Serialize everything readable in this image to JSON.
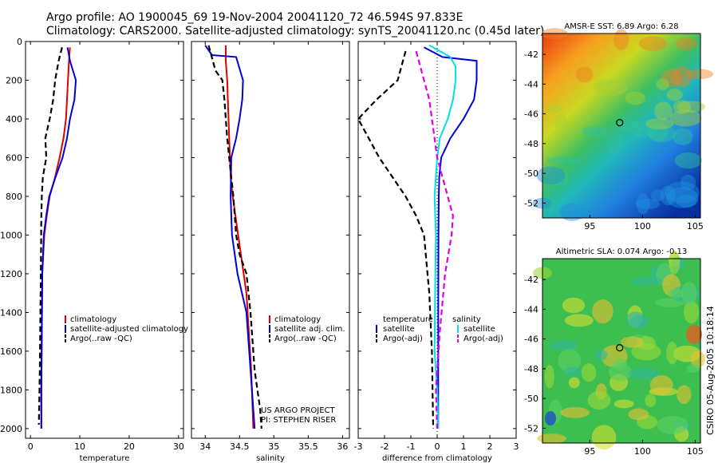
{
  "header": {
    "line1": "Argo profile: AO 1900045_69 19-Nov-2004 20041120_72 46.594S 97.833E",
    "line2": "Climatology: CARS2000. Satellite-adjusted climatology: synTS_20041120.nc (0.45d later)"
  },
  "credit": "CSIRO 05-Aug-2005 10:18:14",
  "colors": {
    "red": "#e00000",
    "blue": "#0000d8",
    "black": "#000000",
    "cyan": "#00e0e0",
    "magenta": "#e000e0"
  },
  "chart_data": [
    {
      "type": "line",
      "id": "temperature",
      "xlabel": "temperature",
      "xlim": [
        -1,
        31
      ],
      "ylim": [
        0,
        2050
      ],
      "y_reversed": true,
      "xticks": [
        0,
        10,
        20,
        30
      ],
      "yticks": [
        0,
        200,
        400,
        600,
        800,
        1000,
        1200,
        1400,
        1600,
        1800,
        2000
      ],
      "series": [
        {
          "name": "climatology",
          "color": "red",
          "style": "solid",
          "x": [
            8.0,
            7.8,
            7.6,
            7.4,
            7.2,
            6.7,
            5.9,
            5.0,
            3.9,
            3.3,
            2.8,
            2.4,
            2.3,
            2.2,
            2.2
          ],
          "y": [
            30,
            100,
            200,
            300,
            400,
            500,
            600,
            700,
            800,
            900,
            1000,
            1200,
            1500,
            1800,
            2000
          ]
        },
        {
          "name": "satellite-adjusted climatology",
          "color": "blue",
          "style": "solid",
          "x": [
            7.5,
            8.0,
            9.2,
            8.9,
            8.0,
            7.4,
            6.5,
            5.1,
            3.8,
            3.2,
            2.7,
            2.4,
            2.3,
            2.2,
            2.2
          ],
          "y": [
            30,
            100,
            200,
            300,
            400,
            500,
            600,
            700,
            800,
            900,
            1000,
            1200,
            1500,
            1800,
            2000
          ]
        },
        {
          "name": "Argo(..raw -QC)",
          "color": "black",
          "style": "dashed",
          "x": [
            6.4,
            5.7,
            5.0,
            4.6,
            3.9,
            3.0,
            3.2,
            2.5,
            2.3,
            2.2,
            2.1,
            1.9,
            1.7
          ],
          "y": [
            30,
            100,
            200,
            300,
            400,
            500,
            600,
            700,
            800,
            900,
            1200,
            1700,
            1980
          ]
        }
      ],
      "legend": [
        "climatology",
        "satellite-adjusted climatology",
        "Argo(..raw -QC)"
      ],
      "legend_position": "bottom-right"
    },
    {
      "type": "line",
      "id": "salinity",
      "xlabel": "salinity",
      "xlim": [
        33.8,
        36.1
      ],
      "ylim": [
        0,
        2050
      ],
      "y_reversed": true,
      "xticks": [
        34,
        34.5,
        35,
        35.5,
        36
      ],
      "yticks": [
        0,
        200,
        400,
        600,
        800,
        1000,
        1200,
        1400,
        1600,
        1800,
        2000
      ],
      "series": [
        {
          "name": "climatology",
          "color": "red",
          "style": "solid",
          "x": [
            34.3,
            34.3,
            34.32,
            34.33,
            34.34,
            34.35,
            34.36,
            34.37,
            34.4,
            34.48,
            34.6,
            34.67,
            34.7
          ],
          "y": [
            20,
            100,
            200,
            300,
            400,
            500,
            600,
            700,
            800,
            1000,
            1300,
            1700,
            2000
          ]
        },
        {
          "name": "satellite adj. clim.",
          "color": "blue",
          "style": "solid",
          "x": [
            34.0,
            34.1,
            34.45,
            34.55,
            34.54,
            34.5,
            34.45,
            34.38,
            34.37,
            34.39,
            34.47,
            34.6,
            34.68,
            34.72
          ],
          "y": [
            20,
            70,
            80,
            200,
            300,
            400,
            500,
            600,
            800,
            1000,
            1200,
            1400,
            1800,
            2000
          ]
        },
        {
          "name": "Argo(..raw -QC)",
          "color": "black",
          "style": "dashed",
          "x": [
            34.05,
            34.15,
            34.25,
            34.28,
            34.3,
            34.32,
            34.35,
            34.38,
            34.41,
            34.45,
            34.5,
            34.6,
            34.66,
            34.72,
            34.8,
            34.82
          ],
          "y": [
            20,
            150,
            200,
            300,
            400,
            500,
            600,
            700,
            800,
            1000,
            1100,
            1200,
            1400,
            1700,
            1900,
            2000
          ]
        }
      ],
      "legend": [
        "climatology",
        "satellite adj. clim.",
        "Argo(..raw -QC)"
      ],
      "legend_position": "bottom-right",
      "annotations": [
        "US ARGO PROJECT",
        "PI: STEPHEN RISER"
      ]
    },
    {
      "type": "line",
      "id": "difference",
      "xlabel": "difference from climatology",
      "xlim": [
        -3,
        3
      ],
      "ylim": [
        0,
        2050
      ],
      "y_reversed": true,
      "xticks": [
        -3,
        -2,
        -1,
        0,
        1,
        2,
        3
      ],
      "yticks": [
        0,
        200,
        400,
        600,
        800,
        1000,
        1200,
        1400,
        1600,
        1800,
        2000
      ],
      "zero_line": "dotted",
      "series": [
        {
          "name": "temperature satellite",
          "color": "blue",
          "style": "solid",
          "x": [
            -0.5,
            0.2,
            1.5,
            1.5,
            1.4,
            1.0,
            0.5,
            0.15,
            0.08,
            0.06,
            0.05,
            0.04,
            0.04
          ],
          "y": [
            30,
            80,
            100,
            200,
            300,
            400,
            500,
            600,
            700,
            800,
            1000,
            1500,
            2000
          ]
        },
        {
          "name": "temperature Argo(-adj)",
          "color": "black",
          "style": "dashed",
          "x": [
            -1.2,
            -1.5,
            -2.3,
            -3.0,
            -2.6,
            -2.2,
            -1.7,
            -1.2,
            -0.8,
            -0.5,
            -0.3,
            -0.2,
            -0.15
          ],
          "y": [
            50,
            200,
            300,
            400,
            500,
            600,
            700,
            800,
            900,
            1000,
            1300,
            1600,
            2000
          ]
        },
        {
          "name": "salinity satellite",
          "color": "cyan",
          "style": "solid",
          "x": [
            -0.3,
            0.5,
            0.7,
            0.7,
            0.6,
            0.4,
            0.1,
            0.0,
            -0.1,
            -0.05,
            -0.08,
            -0.1,
            0.0,
            0.05
          ],
          "y": [
            20,
            80,
            130,
            200,
            300,
            400,
            500,
            600,
            800,
            1000,
            1300,
            1600,
            1800,
            2000
          ]
        },
        {
          "name": "salinity Argo(-adj)",
          "color": "magenta",
          "style": "dashed",
          "x": [
            -0.8,
            -0.5,
            -0.3,
            -0.2,
            -0.1,
            0.0,
            0.2,
            0.4,
            0.6,
            0.55,
            0.3,
            0.1,
            -0.05,
            0.0
          ],
          "y": [
            50,
            200,
            300,
            400,
            500,
            600,
            700,
            800,
            900,
            1000,
            1200,
            1500,
            1800,
            2000
          ]
        }
      ],
      "legend_left": {
        "title": "temperature",
        "items": [
          "satellite",
          "Argo(-adj)"
        ]
      },
      "legend_right": {
        "title": "salinity",
        "items": [
          "satellite",
          "Argo(-adj)"
        ]
      },
      "legend_position": "bottom"
    }
  ],
  "maps": [
    {
      "id": "sst",
      "title": "AMSR-E SST: 6.89 Argo: 6.28",
      "xticks": [
        95,
        100,
        105
      ],
      "yticks": [
        -42,
        -44,
        -46,
        -48,
        -50,
        -52
      ],
      "xlim": [
        90.5,
        105.5
      ],
      "ylim": [
        -53,
        -40.6
      ],
      "marker": [
        97.83,
        -46.59
      ]
    },
    {
      "id": "sla",
      "title": "Altimetric SLA: 0.074 Argo: -0.13",
      "xticks": [
        95,
        100,
        105
      ],
      "yticks": [
        -42,
        -44,
        -46,
        -48,
        -50,
        -52
      ],
      "xlim": [
        90.5,
        105.5
      ],
      "ylim": [
        -53,
        -40.6
      ],
      "marker": [
        97.83,
        -46.59
      ]
    }
  ]
}
